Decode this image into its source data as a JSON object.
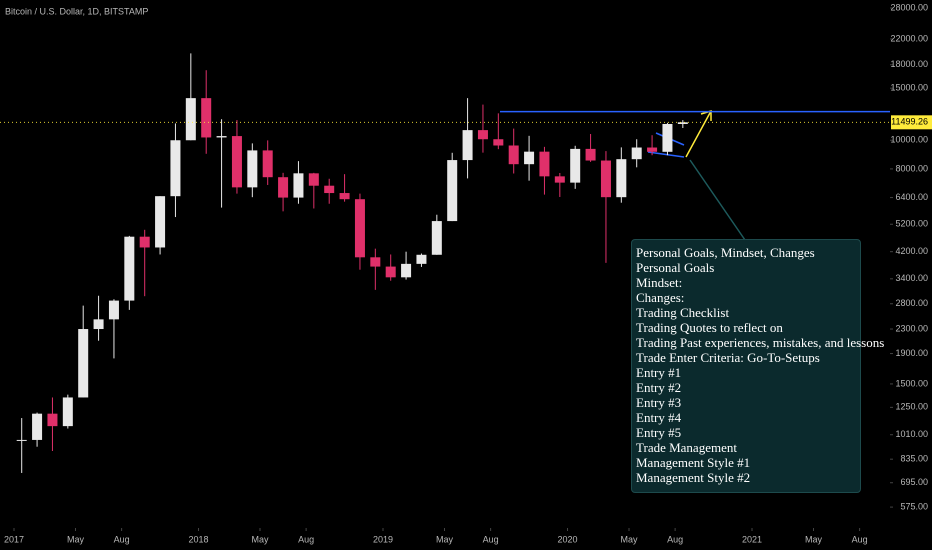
{
  "chart_data": {
    "type": "candlestick",
    "title": "Bitcoin / U.S. Dollar, 1D, BITSTAMP",
    "x": [
      "2017-01",
      "2017-02",
      "2017-03",
      "2017-04",
      "2017-05",
      "2017-06",
      "2017-07",
      "2017-08",
      "2017-09",
      "2017-10",
      "2017-11",
      "2017-12",
      "2018-01",
      "2018-02",
      "2018-03",
      "2018-04",
      "2018-05",
      "2018-06",
      "2018-07",
      "2018-08",
      "2018-09",
      "2018-10",
      "2018-11",
      "2018-12",
      "2019-01",
      "2019-02",
      "2019-03",
      "2019-04",
      "2019-05",
      "2019-06",
      "2019-07",
      "2019-08",
      "2019-09",
      "2019-10",
      "2019-11",
      "2019-12",
      "2020-01",
      "2020-02",
      "2020-03",
      "2020-04",
      "2020-05",
      "2020-06",
      "2020-07",
      "2020-08"
    ],
    "open": [
      964,
      970,
      1190,
      1080,
      1350,
      2300,
      2480,
      2870,
      4720,
      4340,
      6470,
      10000,
      13880,
      10220,
      10330,
      6930,
      9240,
      7500,
      6400,
      7730,
      7020,
      6630,
      6320,
      4020,
      3740,
      3440,
      3820,
      4100,
      5330,
      8570,
      10820,
      10080,
      9600,
      8300,
      9150,
      7550,
      7190,
      9350,
      8540,
      6420,
      8630,
      9450,
      9140,
      11350
    ],
    "high": [
      1150,
      1200,
      1350,
      1380,
      2760,
      2980,
      2900,
      4750,
      4980,
      6470,
      11400,
      19666,
      17250,
      11780,
      11700,
      9760,
      9990,
      7760,
      8500,
      7760,
      7410,
      7680,
      6600,
      4300,
      4110,
      4200,
      4140,
      5600,
      9070,
      13880,
      13200,
      12330,
      10950,
      10350,
      9500,
      7750,
      9580,
      10500,
      9190,
      9460,
      10080,
      10400,
      11450,
      11700
    ],
    "low": [
      750,
      920,
      890,
      1060,
      1350,
      2100,
      1830,
      2670,
      2970,
      4110,
      5500,
      10000,
      9000,
      5920,
      6600,
      6420,
      7060,
      5750,
      6100,
      5880,
      6100,
      6200,
      3650,
      3120,
      3350,
      3380,
      3730,
      4100,
      5330,
      7430,
      9080,
      9330,
      7720,
      7300,
      6550,
      6430,
      6850,
      8450,
      3850,
      6150,
      8100,
      8900,
      8900,
      11000
    ],
    "close": [
      970,
      1190,
      1080,
      1350,
      2300,
      2480,
      2870,
      4720,
      4340,
      6470,
      10000,
      13880,
      10220,
      10330,
      6930,
      9240,
      7500,
      6400,
      7730,
      7020,
      6630,
      6320,
      4020,
      3740,
      3440,
      3820,
      4100,
      5330,
      8570,
      10820,
      10080,
      9600,
      8300,
      9150,
      7550,
      7190,
      9350,
      8540,
      6420,
      8630,
      9450,
      9140,
      11350,
      11499.26
    ],
    "up_color": "#e8e8e8",
    "down_color": "#e0306a",
    "log_scale": true,
    "ylim": [
      512,
      29800
    ],
    "yticks": [
      {
        "value": 28000,
        "label": "28000.00"
      },
      {
        "value": 22000,
        "label": "22000.00"
      },
      {
        "value": 18000,
        "label": "18000.00"
      },
      {
        "value": 15000,
        "label": "15000.00"
      },
      {
        "value": 10000,
        "label": "10000.00"
      },
      {
        "value": 8000,
        "label": "8000.00"
      },
      {
        "value": 6400,
        "label": "6400.00"
      },
      {
        "value": 5200,
        "label": "5200.00"
      },
      {
        "value": 4200,
        "label": "4200.00"
      },
      {
        "value": 3400,
        "label": "3400.00"
      },
      {
        "value": 2800,
        "label": "2800.00"
      },
      {
        "value": 2300,
        "label": "2300.00"
      },
      {
        "value": 1900,
        "label": "1900.00"
      },
      {
        "value": 1500,
        "label": "1500.00"
      },
      {
        "value": 1250,
        "label": "1250.00"
      },
      {
        "value": 1010,
        "label": "1010.00"
      },
      {
        "value": 835,
        "label": "835.00"
      },
      {
        "value": 695,
        "label": "695.00"
      },
      {
        "value": 575,
        "label": "575.00"
      }
    ],
    "xticks": [
      {
        "value": "2017-01",
        "label": "2017"
      },
      {
        "value": "2017-05",
        "label": "May"
      },
      {
        "value": "2017-08",
        "label": "Aug"
      },
      {
        "value": "2018-01",
        "label": "2018"
      },
      {
        "value": "2018-05",
        "label": "May"
      },
      {
        "value": "2018-08",
        "label": "Aug"
      },
      {
        "value": "2019-01",
        "label": "2019"
      },
      {
        "value": "2019-05",
        "label": "May"
      },
      {
        "value": "2019-08",
        "label": "Aug"
      },
      {
        "value": "2020-01",
        "label": "2020"
      },
      {
        "value": "2020-05",
        "label": "May"
      },
      {
        "value": "2020-08",
        "label": "Aug"
      },
      {
        "value": "2021-01",
        "label": "2021"
      },
      {
        "value": "2021-05",
        "label": "May"
      },
      {
        "value": "2021-08",
        "label": "Aug"
      }
    ],
    "last_price": 11499.26,
    "resistance": 12500,
    "note": [
      "Personal Goals, Mindset, Changes",
      "Personal Goals",
      "Mindset:",
      "Changes:",
      "Trading Checklist",
      "Trading Quotes to reflect on",
      "Trading Past experiences, mistakes, and lessons",
      "Trade Enter Criteria: Go-To-Setups",
      "Entry #1",
      "Entry #2",
      "Entry #3",
      "Entry #4",
      "Entry #5",
      "Trade Management",
      "Management Style #1",
      "Management Style #2"
    ]
  }
}
